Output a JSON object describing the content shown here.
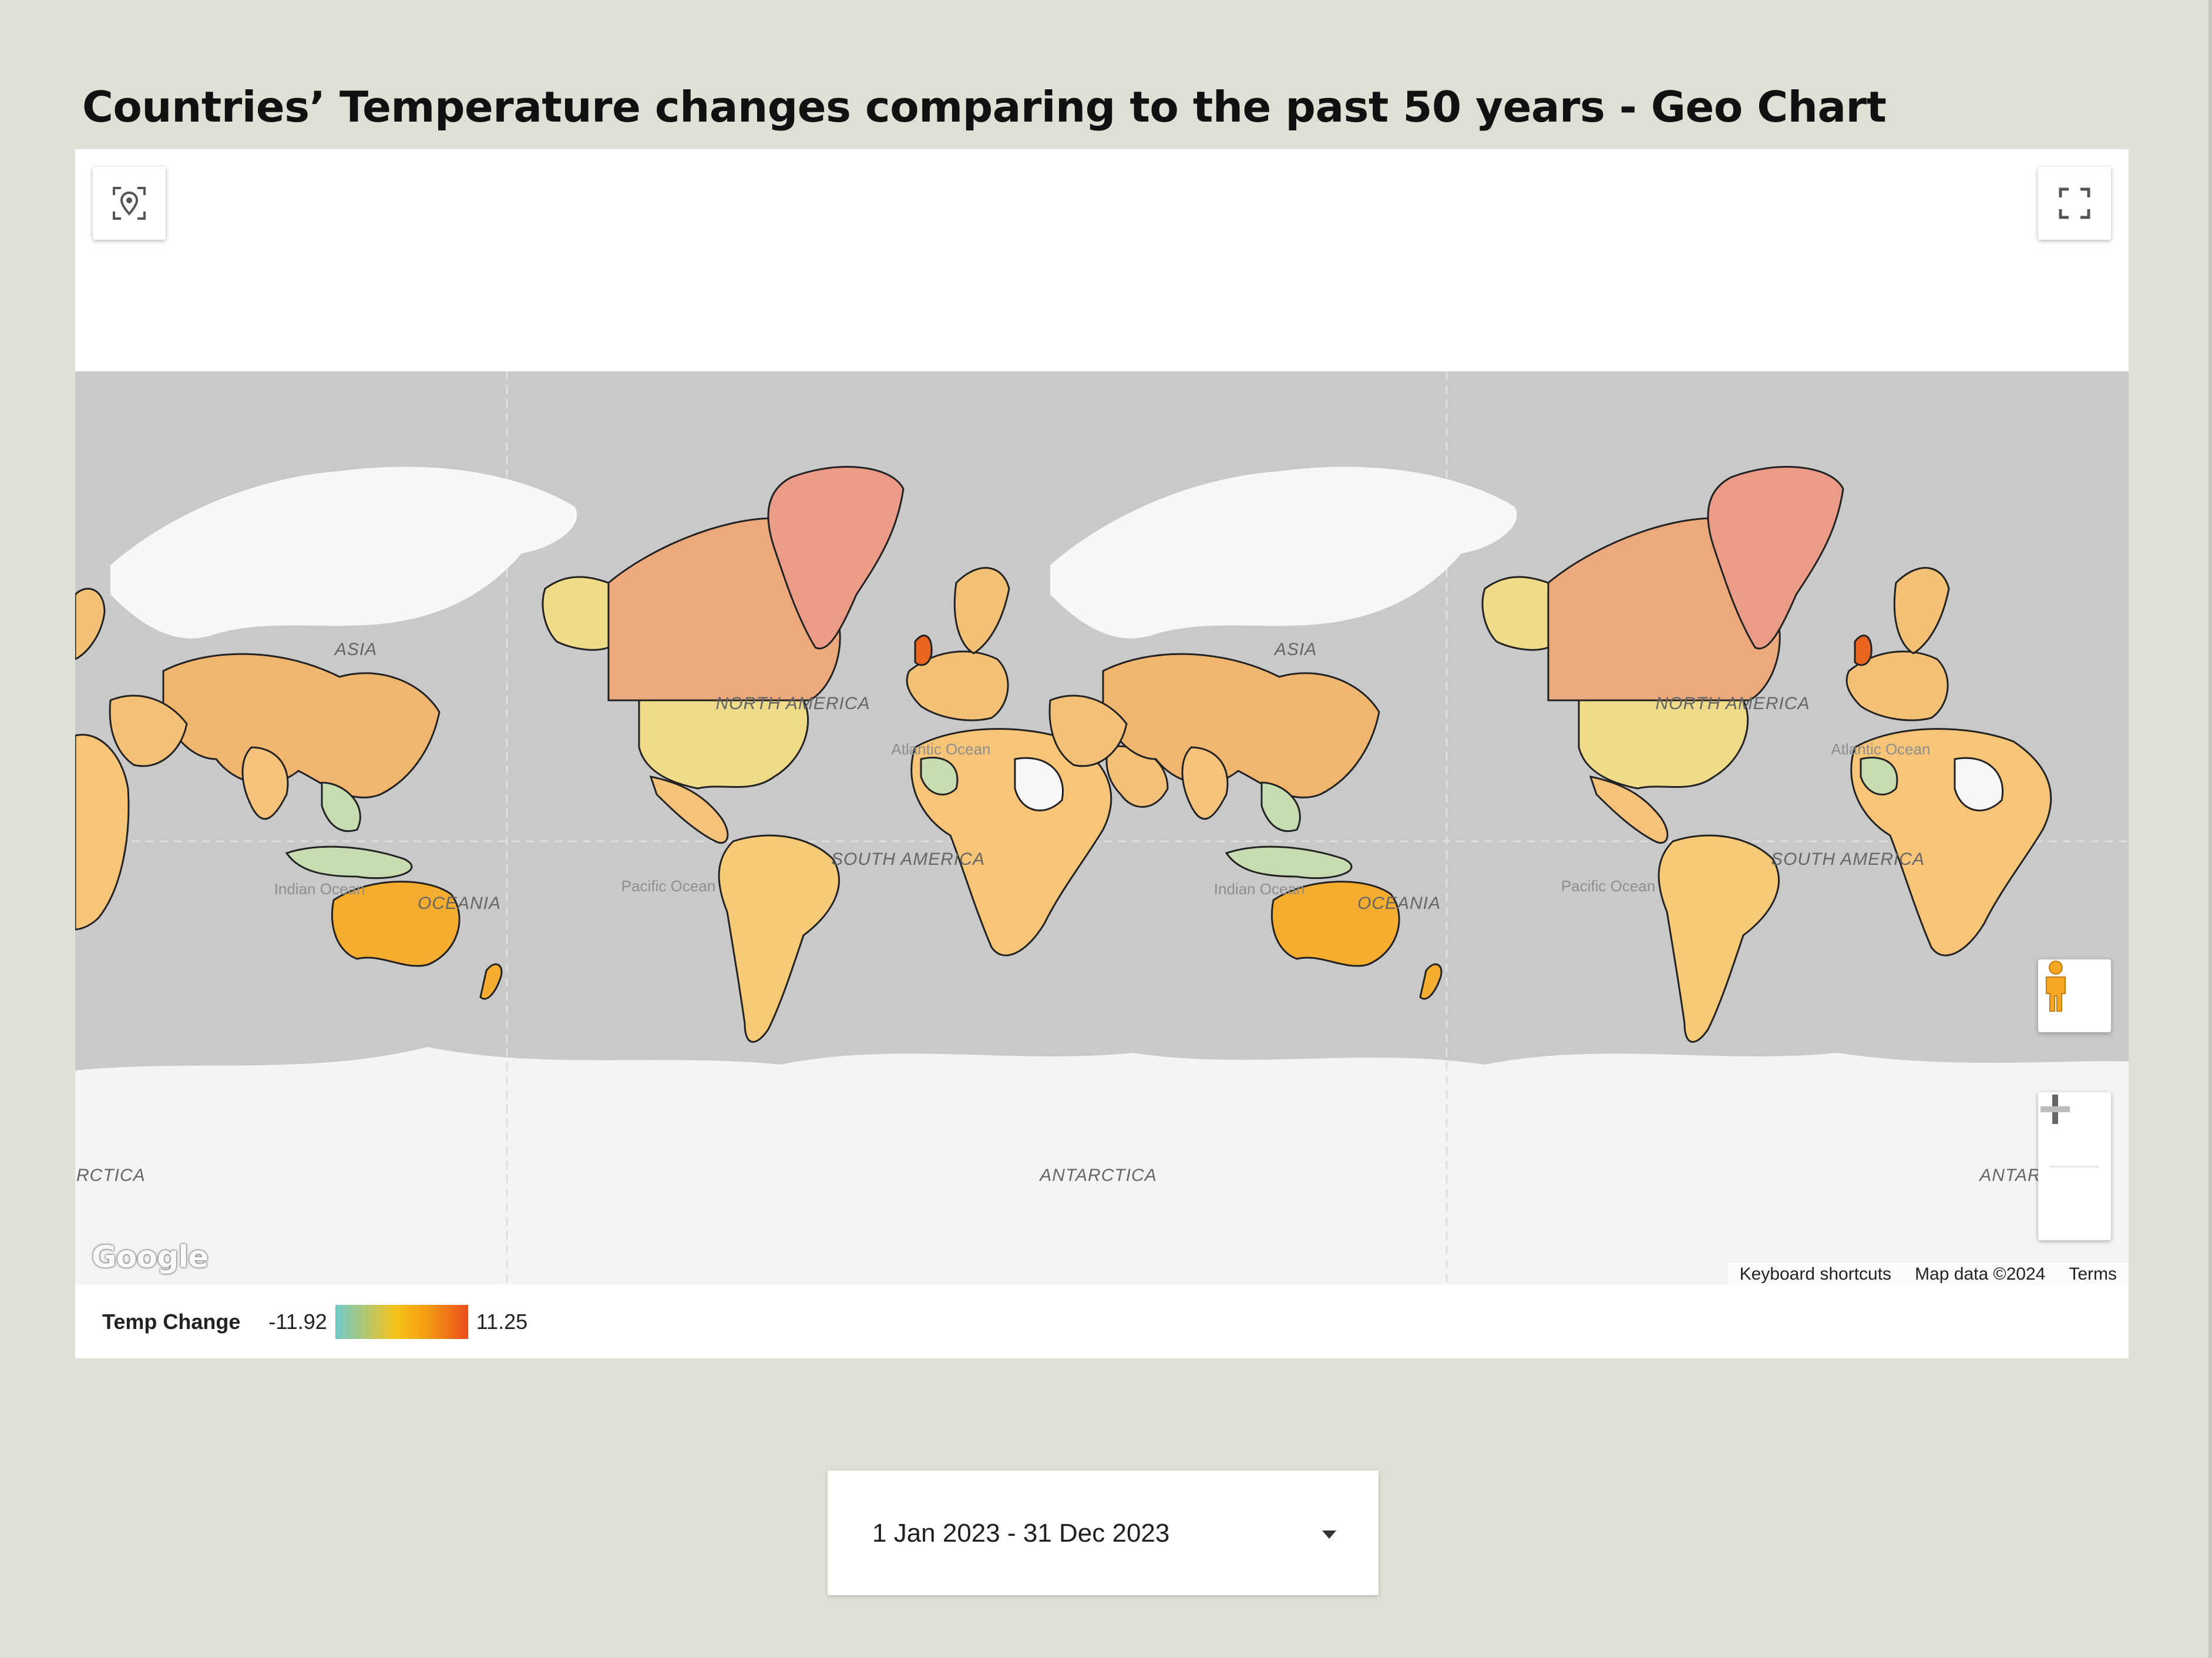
{
  "page": {
    "title": "Countries’ Temperature changes comparing to the past 50 years - Geo Chart"
  },
  "map": {
    "provider_logo": "Google",
    "attribution": {
      "keyboard_shortcuts": "Keyboard shortcuts",
      "map_data": "Map data ©2024",
      "terms": "Terms"
    },
    "controls": {
      "locate_icon": "location-target-icon",
      "fullscreen_icon": "fullscreen-icon",
      "street_view_icon": "pegman-icon",
      "zoom_in_icon": "plus-icon",
      "zoom_out_icon": "minus-icon"
    },
    "labels": {
      "asia": "ASIA",
      "north_america": "NORTH AMERICA",
      "south_america": "SOUTH AMERICA",
      "oceania": "OCEANIA",
      "antarctica": "ANTARCTICA",
      "antarctica_cut": "RCTICA",
      "atlantic": "Atlantic Ocean",
      "pacific": "Pacific Ocean",
      "indian": "Indian Ocean"
    },
    "region_colors": {
      "greenland": "#eb9c88",
      "canada": "#ecaa7c",
      "usa": "#efdb8a",
      "alaska": "#efdb8a",
      "europe": "#f2c176",
      "uk": "#e9641f",
      "asia": "#f0b670",
      "south_america": "#f6ca77",
      "australia": "#f5ad2f",
      "africa": "#f6c578",
      "cool_green": "#c7dcb0",
      "no_data": "#f7f7f7",
      "ocean": "#c9c9c9"
    }
  },
  "legend": {
    "title": "Temp Change",
    "min": "-11.92",
    "max": "11.25",
    "colors": [
      "#6dcac9",
      "#f5c31a",
      "#f39a12",
      "#ec4d1b"
    ]
  },
  "date_range": {
    "value": "1 Jan 2023 - 31 Dec 2023"
  }
}
